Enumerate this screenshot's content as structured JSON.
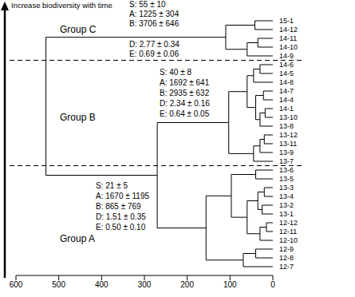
{
  "chart_data": {
    "type": "dendrogram",
    "title": "Increase biodiversity with time",
    "color": "#000000",
    "xlim": [
      600,
      0
    ],
    "xticks": [
      600,
      500,
      400,
      300,
      200,
      100,
      0
    ],
    "tree": {
      "height": 530,
      "children": [
        {
          "label": "Group C",
          "stats": [
            "S: 55 ± 10",
            "A: 1225 ± 304",
            "B: 3706 ± 646",
            "D: 2.77 ± 0.34",
            "E: 0.69 ± 0.06"
          ],
          "height": 110,
          "children": [
            {
              "height": 42,
              "children": [
                "15-1",
                "14-12"
              ]
            },
            {
              "height": 60,
              "children": [
                {
                  "height": 35,
                  "children": [
                    "14-11",
                    "14-10"
                  ]
                },
                "14-9"
              ]
            }
          ]
        },
        {
          "height": 270,
          "children": [
            {
              "label": "Group B",
              "stats": [
                "S: 40 ± 8",
                "A: 1692 ± 641",
                "B: 2935 ± 632",
                "D: 2.34 ± 0.16",
                "E: 0.64 ± 0.05"
              ],
              "height": 103,
              "children": [
                {
                  "height": 60,
                  "children": [
                    {
                      "height": 45,
                      "children": [
                        {
                          "height": 30,
                          "children": [
                            "14-6",
                            "14-5"
                          ]
                        },
                        "14-8"
                      ]
                    },
                    {
                      "height": 40,
                      "children": [
                        {
                          "height": 22,
                          "children": [
                            "14-7",
                            "14-4"
                          ]
                        },
                        {
                          "height": 30,
                          "children": [
                            {
                              "height": 18,
                              "children": [
                                "14-1",
                                "13-10"
                              ]
                            },
                            "13-8"
                          ]
                        }
                      ]
                    }
                  ]
                },
                {
                  "height": 45,
                  "children": [
                    {
                      "height": 30,
                      "children": [
                        {
                          "height": 20,
                          "children": [
                            "13-12",
                            "13-11"
                          ]
                        },
                        "13-9"
                      ]
                    },
                    "13-7"
                  ]
                }
              ]
            },
            {
              "label": "Group A",
              "stats": [
                "S: 21 ± 5",
                "A: 1670 ± 1195",
                "B: 865 ± 769",
                "D: 1.51 ± 0.35",
                "E: 0.50 ± 0.10"
              ],
              "height": 156,
              "children": [
                {
                  "height": 97,
                  "children": [
                    {
                      "height": 40,
                      "children": [
                        "13-6",
                        "13-5"
                      ]
                    },
                    {
                      "height": 60,
                      "children": [
                        {
                          "height": 35,
                          "children": [
                            {
                              "height": 20,
                              "children": [
                                "13-3",
                                "13-4"
                              ]
                            },
                            {
                              "height": 25,
                              "children": [
                                "13-2",
                                "13-1"
                              ]
                            }
                          ]
                        },
                        {
                          "height": 30,
                          "children": [
                            {
                              "height": 15,
                              "children": [
                                "12-12",
                                "12-11"
                              ]
                            },
                            "12-10"
                          ]
                        }
                      ]
                    }
                  ]
                },
                {
                  "height": 69,
                  "children": [
                    {
                      "height": 40,
                      "children": [
                        "12-9",
                        "12-8"
                      ]
                    },
                    "12-7"
                  ]
                }
              ]
            }
          ]
        }
      ]
    }
  }
}
